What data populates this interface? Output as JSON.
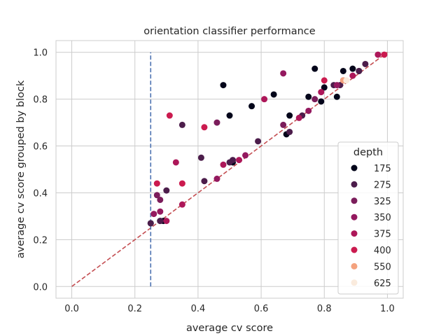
{
  "chart_data": {
    "type": "scatter",
    "title": "orientation classifier performance",
    "xlabel": "average cv score",
    "ylabel": "average cv score grouped by block",
    "xlim": [
      -0.05,
      1.05
    ],
    "ylim": [
      -0.05,
      1.05
    ],
    "xticks": [
      "0.0",
      "0.2",
      "0.4",
      "0.6",
      "0.8",
      "1.0"
    ],
    "yticks": [
      "0.0",
      "0.2",
      "0.4",
      "0.6",
      "0.8",
      "1.0"
    ],
    "grid": true,
    "legend": {
      "title": "depth",
      "placement": "lower-right",
      "entries": [
        {
          "label": "175",
          "color": "#03051a"
        },
        {
          "label": "275",
          "color": "#4c1d4b"
        },
        {
          "label": "325",
          "color": "#7b1d5b"
        },
        {
          "label": "350",
          "color": "#94195f"
        },
        {
          "label": "375",
          "color": "#ad1759"
        },
        {
          "label": "400",
          "color": "#cb1b4f"
        },
        {
          "label": "550",
          "color": "#f4a27e"
        },
        {
          "label": "625",
          "color": "#faebdd"
        }
      ]
    },
    "reference_lines": [
      {
        "kind": "diagonal",
        "from": [
          0,
          0
        ],
        "to": [
          1,
          1
        ],
        "color": "#c44e52",
        "style": "dashed"
      },
      {
        "kind": "vertical",
        "x": 0.25,
        "y_range": [
          0,
          1
        ],
        "color": "#4c72b0",
        "style": "dashed"
      }
    ],
    "series": [
      {
        "depth": "175",
        "color": "#03051a",
        "points": [
          [
            0.25,
            0.27
          ],
          [
            0.28,
            0.28
          ],
          [
            0.29,
            0.28
          ],
          [
            0.48,
            0.86
          ],
          [
            0.5,
            0.73
          ],
          [
            0.51,
            0.53
          ],
          [
            0.57,
            0.77
          ],
          [
            0.64,
            0.82
          ],
          [
            0.68,
            0.65
          ],
          [
            0.69,
            0.73
          ],
          [
            0.75,
            0.81
          ],
          [
            0.77,
            0.93
          ],
          [
            0.79,
            0.79
          ],
          [
            0.8,
            0.85
          ],
          [
            0.84,
            0.81
          ],
          [
            0.86,
            0.92
          ],
          [
            0.89,
            0.93
          ],
          [
            0.91,
            0.92
          ]
        ]
      },
      {
        "depth": "275",
        "color": "#4c1d4b",
        "points": [
          [
            0.25,
            0.27
          ],
          [
            0.28,
            0.28
          ],
          [
            0.3,
            0.41
          ],
          [
            0.35,
            0.69
          ],
          [
            0.41,
            0.55
          ],
          [
            0.42,
            0.45
          ],
          [
            0.5,
            0.53
          ],
          [
            0.51,
            0.54
          ],
          [
            0.59,
            0.62
          ],
          [
            0.69,
            0.66
          ],
          [
            0.73,
            0.73
          ],
          [
            0.83,
            0.86
          ],
          [
            0.85,
            0.86
          ],
          [
            0.91,
            0.92
          ],
          [
            0.93,
            0.95
          ]
        ]
      },
      {
        "depth": "325",
        "color": "#7b1d5b",
        "points": [
          [
            0.27,
            0.39
          ],
          [
            0.28,
            0.37
          ],
          [
            0.46,
            0.7
          ],
          [
            0.67,
            0.69
          ],
          [
            0.77,
            0.8
          ],
          [
            0.86,
            0.88
          ]
        ]
      },
      {
        "depth": "350",
        "color": "#94195f",
        "points": [
          [
            0.26,
            0.31
          ],
          [
            0.28,
            0.32
          ],
          [
            0.46,
            0.46
          ],
          [
            0.55,
            0.56
          ],
          [
            0.67,
            0.91
          ],
          [
            0.75,
            0.75
          ],
          [
            0.84,
            0.86
          ]
        ]
      },
      {
        "depth": "375",
        "color": "#ad1759",
        "points": [
          [
            0.3,
            0.28
          ],
          [
            0.33,
            0.53
          ],
          [
            0.35,
            0.35
          ],
          [
            0.48,
            0.52
          ],
          [
            0.53,
            0.54
          ],
          [
            0.61,
            0.8
          ],
          [
            0.72,
            0.72
          ],
          [
            0.79,
            0.83
          ],
          [
            0.89,
            0.9
          ],
          [
            0.97,
            0.99
          ]
        ]
      },
      {
        "depth": "400",
        "color": "#cb1b4f",
        "points": [
          [
            0.27,
            0.44
          ],
          [
            0.31,
            0.73
          ],
          [
            0.35,
            0.44
          ],
          [
            0.42,
            0.68
          ],
          [
            0.8,
            0.88
          ],
          [
            0.99,
            0.99
          ]
        ]
      },
      {
        "depth": "550",
        "color": "#f4a27e",
        "points": [
          [
            0.86,
            0.88
          ]
        ]
      },
      {
        "depth": "625",
        "color": "#faebdd",
        "points": [
          [
            0.87,
            0.88
          ]
        ]
      }
    ]
  }
}
